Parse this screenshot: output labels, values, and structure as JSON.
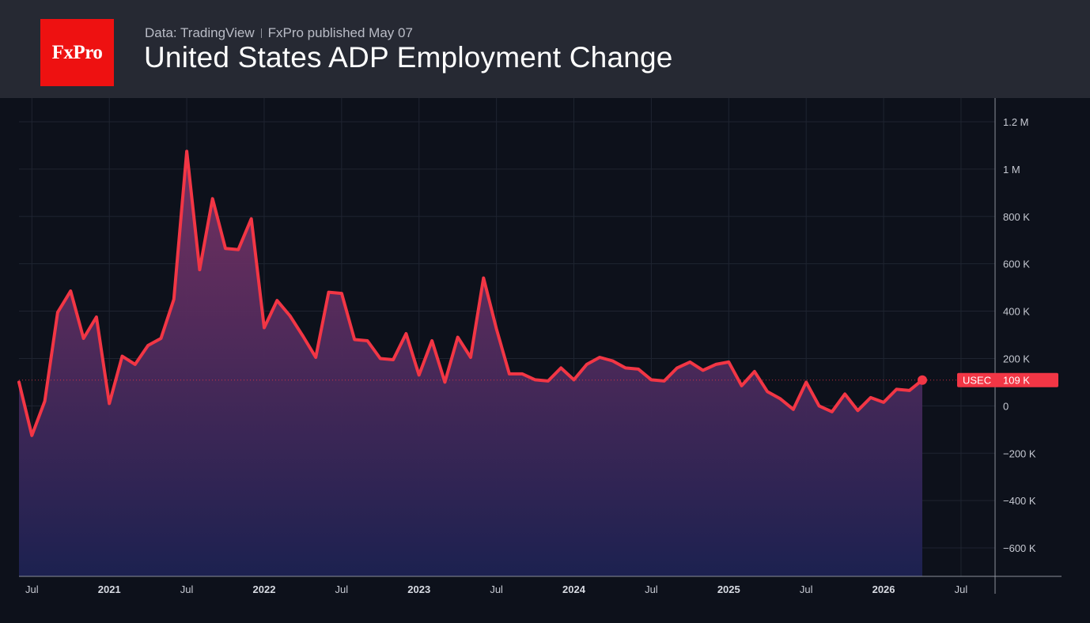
{
  "header": {
    "logo_text": "FxPro",
    "source": "Data: TradingView",
    "published": "FxPro published May 07",
    "title": "United States ADP Employment Change"
  },
  "colors": {
    "line": "#f23645",
    "background": "#0d111b",
    "header": "#262933",
    "logo": "#ee1111",
    "area_top": "#7a3264",
    "area_bottom": "#1c2150"
  },
  "chart_data": {
    "type": "area",
    "title": "United States ADP Employment Change",
    "xlabel": "",
    "ylabel": "",
    "symbol": "USEC",
    "last_value_label": "109 K",
    "ylim": [
      -720000,
      1300000
    ],
    "yticks": [
      -600000,
      -400000,
      -200000,
      0,
      200000,
      400000,
      600000,
      800000,
      1000000,
      1200000
    ],
    "ytick_labels": [
      "−600 K",
      "−400 K",
      "−200 K",
      "0",
      "200 K",
      "400 K",
      "600 K",
      "800 K",
      "1 M",
      "1.2 M"
    ],
    "xlim": [
      "2020-06",
      "2026-10"
    ],
    "xticks": [
      {
        "date": "2020-07",
        "label": "Jul",
        "year": false
      },
      {
        "date": "2021-01",
        "label": "2021",
        "year": true
      },
      {
        "date": "2021-07",
        "label": "Jul",
        "year": false
      },
      {
        "date": "2022-01",
        "label": "2022",
        "year": true
      },
      {
        "date": "2022-07",
        "label": "Jul",
        "year": false
      },
      {
        "date": "2023-01",
        "label": "2023",
        "year": true
      },
      {
        "date": "2023-07",
        "label": "Jul",
        "year": false
      },
      {
        "date": "2024-01",
        "label": "2024",
        "year": true
      },
      {
        "date": "2024-07",
        "label": "Jul",
        "year": false
      },
      {
        "date": "2025-01",
        "label": "2025",
        "year": true
      },
      {
        "date": "2025-07",
        "label": "Jul",
        "year": false
      },
      {
        "date": "2026-01",
        "label": "2026",
        "year": true
      },
      {
        "date": "2026-07",
        "label": "Jul",
        "year": false
      }
    ],
    "grid": true,
    "series": [
      {
        "name": "USEC",
        "x": [
          "2020-06",
          "2020-07",
          "2020-08",
          "2020-09",
          "2020-10",
          "2020-11",
          "2020-12",
          "2021-01",
          "2021-02",
          "2021-03",
          "2021-04",
          "2021-05",
          "2021-06",
          "2021-07",
          "2021-08",
          "2021-09",
          "2021-10",
          "2021-11",
          "2021-12",
          "2022-01",
          "2022-02",
          "2022-03",
          "2022-04",
          "2022-05",
          "2022-06",
          "2022-07",
          "2022-08",
          "2022-09",
          "2022-10",
          "2022-11",
          "2022-12",
          "2023-01",
          "2023-02",
          "2023-03",
          "2023-04",
          "2023-05",
          "2023-06",
          "2023-07",
          "2023-08",
          "2023-09",
          "2023-10",
          "2023-11",
          "2023-12",
          "2024-01",
          "2024-02",
          "2024-03",
          "2024-04",
          "2024-05",
          "2024-06",
          "2024-07",
          "2024-08",
          "2024-09",
          "2024-10",
          "2024-11",
          "2024-12",
          "2025-01",
          "2025-02",
          "2025-03",
          "2025-04",
          "2025-05",
          "2025-06",
          "2025-07",
          "2025-08",
          "2025-09",
          "2025-10",
          "2025-11",
          "2025-12",
          "2026-01",
          "2026-02",
          "2026-03",
          "2026-04"
        ],
        "values": [
          100000,
          -125000,
          20000,
          395000,
          485000,
          285000,
          375000,
          10000,
          210000,
          175000,
          255000,
          285000,
          450000,
          1075000,
          575000,
          875000,
          665000,
          660000,
          790000,
          330000,
          445000,
          380000,
          295000,
          205000,
          480000,
          475000,
          280000,
          275000,
          200000,
          195000,
          305000,
          130000,
          275000,
          100000,
          290000,
          205000,
          540000,
          325000,
          135000,
          135000,
          110000,
          105000,
          160000,
          110000,
          175000,
          205000,
          190000,
          160000,
          155000,
          110000,
          105000,
          160000,
          185000,
          150000,
          175000,
          185000,
          85000,
          145000,
          60000,
          30000,
          -15000,
          100000,
          0,
          -25000,
          50000,
          -20000,
          35000,
          15000,
          70000,
          65000,
          109000
        ]
      }
    ]
  }
}
